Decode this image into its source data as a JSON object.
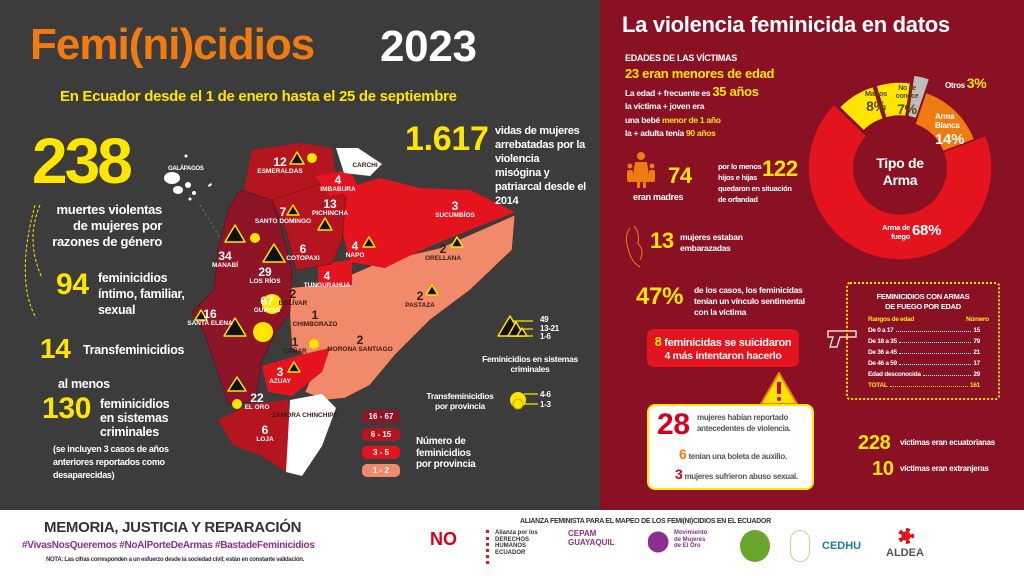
{
  "header": {
    "title_main": "Femi(ni)cidios",
    "title_year": "2023",
    "subtitle": "En Ecuador desde el 1 de enero hasta el 25 de septiembre"
  },
  "left_stats": {
    "total": "238",
    "total_label": "muertes violentas de mujeres por razones de género",
    "intimate": "94",
    "intimate_label": "feminicidios íntimo, familiar, sexual",
    "trans": "14",
    "trans_label": "Transfeminicidios",
    "criminal_prefix": "al menos",
    "criminal": "130",
    "criminal_label": "feminicidios en sistemas criminales",
    "criminal_note": "(se incluyen 3 casos de años anteriores reportados como desaparecidas)",
    "since2014": "1.617",
    "since2014_label": "vidas de mujeres arrebatadas por la violencia misógina y patriarcal desde el 2014"
  },
  "map": {
    "galapagos": "GALÁPAGOS",
    "provinces": [
      {
        "name": "ESMERALDAS",
        "count": "12"
      },
      {
        "name": "CARCHI",
        "count": ""
      },
      {
        "name": "IMBABURA",
        "count": "4"
      },
      {
        "name": "SUCUMBÍOS",
        "count": "3"
      },
      {
        "name": "PICHINCHA",
        "count": "13"
      },
      {
        "name": "SANTO DOMINGO",
        "count": "7"
      },
      {
        "name": "NAPO",
        "count": "4"
      },
      {
        "name": "ORELLANA",
        "count": "2"
      },
      {
        "name": "COTOPAXI",
        "count": "6"
      },
      {
        "name": "MANABÍ",
        "count": "34"
      },
      {
        "name": "LOS RÍOS",
        "count": "29"
      },
      {
        "name": "TUNGURAHUA",
        "count": "4"
      },
      {
        "name": "PASTAZA",
        "count": "2"
      },
      {
        "name": "BOLÍVAR",
        "count": "2"
      },
      {
        "name": "GUAYAS",
        "count": "67"
      },
      {
        "name": "SANTA ELENA",
        "count": "16"
      },
      {
        "name": "CHIMBORAZO",
        "count": "1"
      },
      {
        "name": "CAÑAR",
        "count": "1"
      },
      {
        "name": "MORONA SANTIAGO",
        "count": "2"
      },
      {
        "name": "AZUAY",
        "count": "3"
      },
      {
        "name": "EL ORO",
        "count": "22"
      },
      {
        "name": "ZAMORA CHINCHIPE",
        "count": ""
      },
      {
        "name": "LOJA",
        "count": "6"
      }
    ],
    "legend_criminal": {
      "values": [
        "49",
        "13-21",
        "1-6"
      ],
      "label": "Feminicidios en sistemas criminales"
    },
    "legend_trans": {
      "values": [
        "4-6",
        "1-3"
      ],
      "label": "Transfeminicidios por provincia"
    },
    "legend_count": {
      "ranges": [
        "16 - 67",
        "6 - 15",
        "3 - 5",
        "1 - 2"
      ],
      "colors": [
        "#8e1528",
        "#b5151f",
        "#e3141e",
        "#f08a6a"
      ],
      "label": "Número de feminicidios por provincia"
    }
  },
  "right": {
    "title": "La violencia feminicida en datos",
    "ages_heading": "EDADES DE LAS VÍCTIMAS",
    "minors": "23 eran menores de edad",
    "freq_prefix": "La edad + frecuente es",
    "freq_value": "35 años",
    "young_1": "la víctima + joven era",
    "young_2_prefix": "una bebé",
    "young_2_value": "menor de 1 año",
    "old_prefix": "la + adulta tenía",
    "old_value": "90 años",
    "mothers": "74",
    "mothers_label": "eran madres",
    "orphans_prefix": "por lo menos",
    "orphans": "122",
    "orphans_label_1": "hijos e hijas",
    "orphans_label_2": "quedaron en situación",
    "orphans_label_3": "de orfandad",
    "pregnant": "13",
    "pregnant_label": "mujeres estaban embarazadas",
    "sentimental": "47%",
    "sentimental_label": "de los casos, los feminicidas tenían un vínculo sentimental con la víctima",
    "suicide_num": "8",
    "suicide_label": "feminicidas se suicidaron",
    "suicide_attempt": "4 más intentaron hacerlo",
    "reported": "28",
    "reported_label": "mujeres habían reportado antecedentes de violencia.",
    "boleta": "6",
    "boleta_label": "tenían una boleta de auxilio.",
    "abuse": "3",
    "abuse_label": "mujeres sufrieron abuso sexual.",
    "ecuadorian": "228",
    "ecuadorian_label": "víctimas eran ecuatorianas",
    "foreign": "10",
    "foreign_label": "víctimas eran extranjeras",
    "firearms": {
      "title_1": "FEMINICIDIOS CON ARMAS",
      "title_2": "DE FUEGO POR EDAD",
      "col_range": "Rangos de edad",
      "col_number": "Número",
      "rows": [
        {
          "range": "De 0  a 17",
          "n": "15"
        },
        {
          "range": "De 18 a 35",
          "n": "79"
        },
        {
          "range": "De 36 a 45",
          "n": "21"
        },
        {
          "range": "De 46 a 59",
          "n": "17"
        },
        {
          "range": "Edad desconocida",
          "n": "29"
        }
      ],
      "total_label": "TOTAL",
      "total": "161"
    }
  },
  "chart_data": {
    "type": "pie",
    "title": "Tipo de Arma",
    "slices": [
      {
        "label": "Otros",
        "value": 3,
        "display": "3%",
        "color": "#bdbdbd"
      },
      {
        "label": "Arma Blanca",
        "value": 14,
        "display": "14%",
        "color": "#f07c11"
      },
      {
        "label": "Arma de fuego",
        "value": 68,
        "display": "68%",
        "color": "#e3141e"
      },
      {
        "label": "Manos",
        "value": 8,
        "display": "8%",
        "color": "#ffe600"
      },
      {
        "label": "No se conoce",
        "value": 7,
        "display": "7%",
        "color": "#ffe600"
      }
    ]
  },
  "footer": {
    "slogan": "MEMORIA, JUSTICIA Y REPARACIÓN",
    "hashtags": "#VivasNosQueremos   #NoAlPorteDeArmas   #BastadeFeminicidios",
    "note": "NOTA: Las cifras corresponden a un esfuerzo desde la sociedad civil; están en constante validación.",
    "alliance": "ALIANZA FEMINISTA PARA EL MAPEO DE LOS FEMI(NI)CIDIOS EN EL ECUADOR",
    "logos": [
      "NO",
      "Alianza por los DERECHOS HUMANOS ECUADOR",
      "CEPAM GUAYAQUIL",
      "Movimiento de Mujeres de El Oro",
      "CEDHU",
      "ALDEA"
    ]
  }
}
